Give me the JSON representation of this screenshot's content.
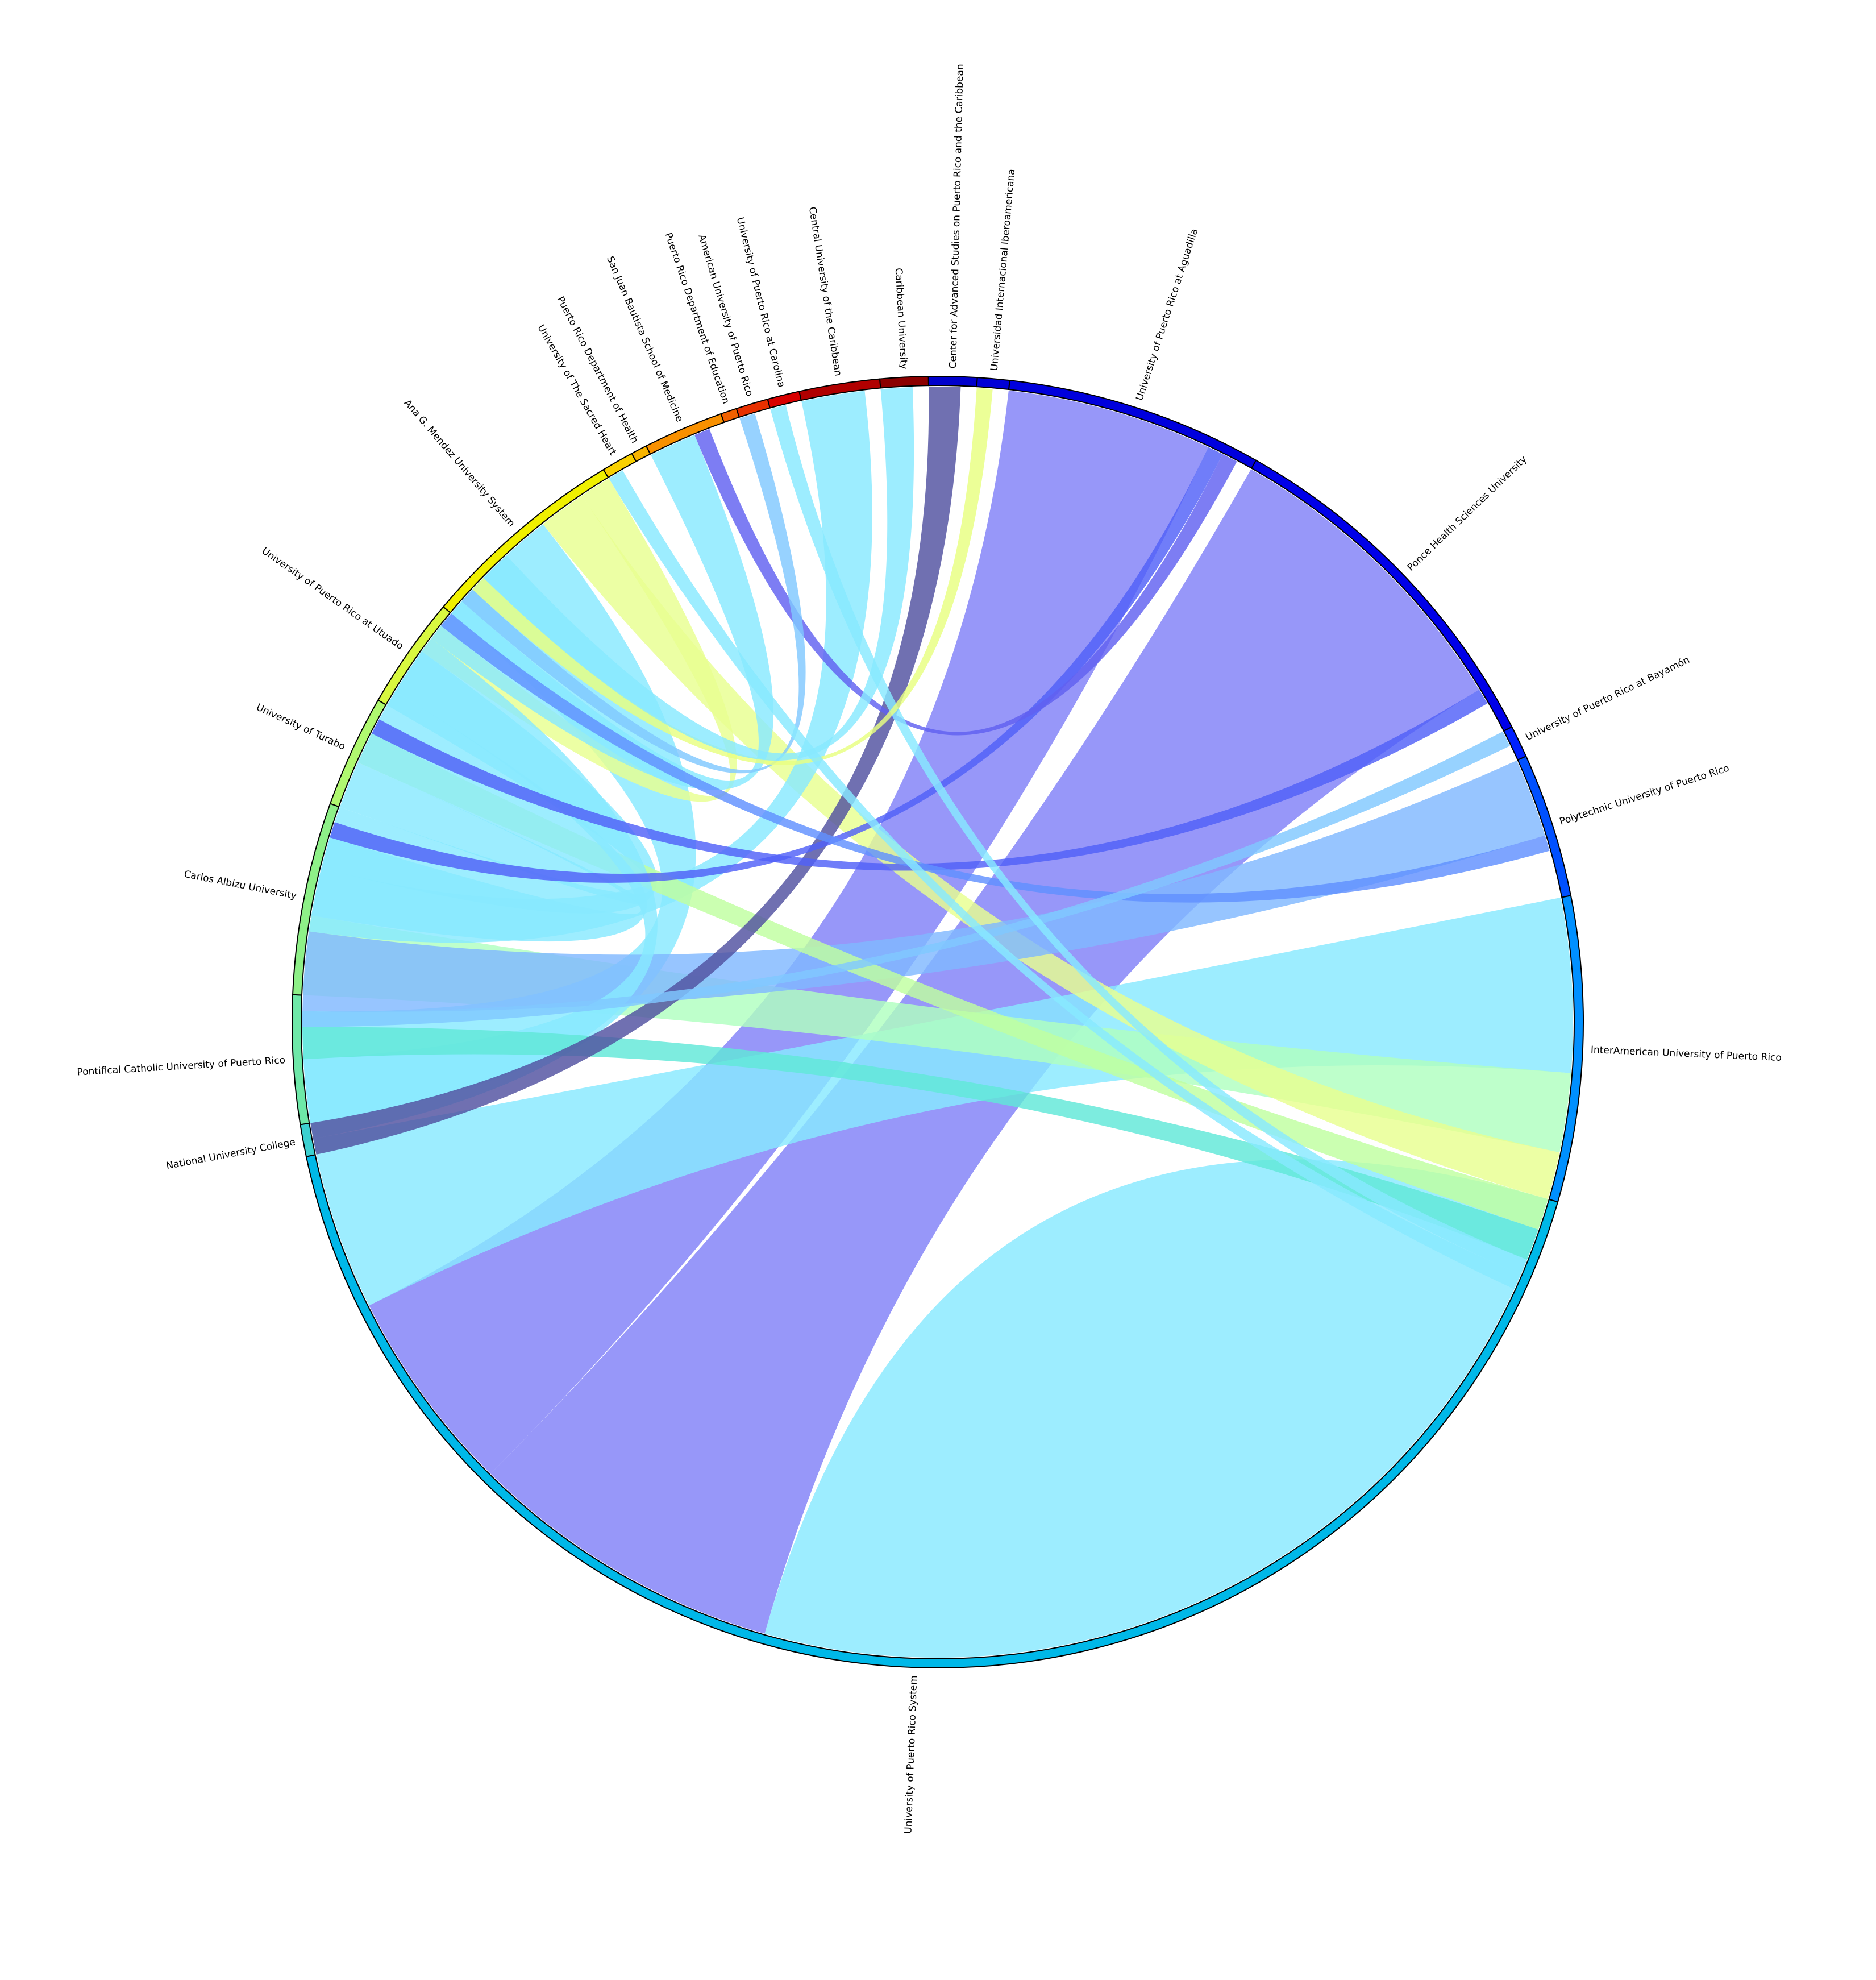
{
  "chart_data": {
    "type": "chord",
    "title": "",
    "segments": [
      {
        "name": "Caribbean University",
        "color": "#8b0000",
        "value": 6
      },
      {
        "name": "Center for Advanced Studies on Puerto Rico and the Caribbean",
        "color": "#0000cc",
        "value": 6
      },
      {
        "name": "Universidad Internacional Iberoamericana",
        "color": "#0000d6",
        "value": 4
      },
      {
        "name": "University of Puerto Rico at Aguadilla",
        "color": "#0000dd",
        "value": 32
      },
      {
        "name": "Ponce Health Sciences University",
        "color": "#0000e8",
        "value": 46
      },
      {
        "name": "University of Puerto Rico at Bayamón",
        "color": "#0020ff",
        "value": 4
      },
      {
        "name": "Polytechnic University of Puerto Rico",
        "color": "#0050ff",
        "value": 18
      },
      {
        "name": "InterAmerican University of Puerto Rico",
        "color": "#0090ff",
        "value": 38
      },
      {
        "name": "University of Puerto Rico System",
        "color": "#00b8e8",
        "value": 210
      },
      {
        "name": "National University College",
        "color": "#3cd0d0",
        "value": 4
      },
      {
        "name": "Pontifical Catholic University of Puerto Rico",
        "color": "#6ee8a8",
        "value": 16
      },
      {
        "name": "Carlos Albizu University",
        "color": "#8ef088",
        "value": 24
      },
      {
        "name": "University of Turabo",
        "color": "#b0f870",
        "value": 14
      },
      {
        "name": "University of Puerto Rico at Utuado",
        "color": "#d8f840",
        "value": 14
      },
      {
        "name": "Ana G. Mendez University System",
        "color": "#f0f000",
        "value": 26
      },
      {
        "name": "University of The Sacred Heart",
        "color": "#f8d000",
        "value": 4
      },
      {
        "name": "Puerto Rico Department of Health",
        "color": "#f8b400",
        "value": 2
      },
      {
        "name": "San Juan Bautista School of Medicine",
        "color": "#f89000",
        "value": 10
      },
      {
        "name": "Puerto Rico Department of Education",
        "color": "#f06000",
        "value": 2
      },
      {
        "name": "American University of Puerto Rico",
        "color": "#e83000",
        "value": 4
      },
      {
        "name": "University of Puerto Rico at Carolina",
        "color": "#d80000",
        "value": 4
      },
      {
        "name": "Central University of the Caribbean",
        "color": "#b00000",
        "value": 10
      }
    ],
    "links": [
      {
        "source": "University of Puerto Rico System",
        "target": "University of Puerto Rico System",
        "value": 62,
        "color": "#87e9ff"
      },
      {
        "source": "Ponce Health Sciences University",
        "target": "University of Puerto Rico System",
        "value": 40,
        "color": "#8080f8"
      },
      {
        "source": "University of Puerto Rico at Aguadilla",
        "target": "University of Puerto Rico System",
        "value": 26,
        "color": "#8080f8"
      },
      {
        "source": "InterAmerican University of Puerto Rico",
        "target": "University of Puerto Rico System",
        "value": 22,
        "color": "#87e9ff"
      },
      {
        "source": "Carlos Albizu University",
        "target": "InterAmerican University of Puerto Rico",
        "value": 10,
        "color": "#b0ffc0"
      },
      {
        "source": "Ana G. Mendez University System",
        "target": "University of Puerto Rico System",
        "value": 16,
        "color": "#87e9ff"
      },
      {
        "source": "Ana G. Mendez University System",
        "target": "InterAmerican University of Puerto Rico",
        "value": 6,
        "color": "#e8ff90"
      },
      {
        "source": "Polytechnic University of Puerto Rico",
        "target": "University of Puerto Rico System",
        "value": 10,
        "color": "#80b8ff"
      },
      {
        "source": "Central University of the Caribbean",
        "target": "University of Puerto Rico System",
        "value": 8,
        "color": "#87e9ff"
      },
      {
        "source": "University of Puerto Rico at Utuado",
        "target": "University of Puerto Rico System",
        "value": 8,
        "color": "#87e9ff"
      },
      {
        "source": "University of Puerto Rico at Utuado",
        "target": "Ana G. Mendez University System",
        "value": 4,
        "color": "#e8ff90"
      },
      {
        "source": "University of Turabo",
        "target": "University of Puerto Rico System",
        "value": 6,
        "color": "#87e9ff"
      },
      {
        "source": "University of Turabo",
        "target": "InterAmerican University of Puerto Rico",
        "value": 4,
        "color": "#c0ffa0"
      },
      {
        "source": "Carlos Albizu University",
        "target": "University of Puerto Rico System",
        "value": 10,
        "color": "#87e9ff"
      },
      {
        "source": "Pontifical Catholic University of Puerto Rico",
        "target": "University of Puerto Rico System",
        "value": 8,
        "color": "#87e9ff"
      },
      {
        "source": "Pontifical Catholic University of Puerto Rico",
        "target": "InterAmerican University of Puerto Rico",
        "value": 4,
        "color": "#60e8d8"
      },
      {
        "source": "San Juan Bautista School of Medicine",
        "target": "University of Puerto Rico System",
        "value": 6,
        "color": "#87e9ff"
      },
      {
        "source": "Center for Advanced Studies on Puerto Rico and the Caribbean",
        "target": "National University College",
        "value": 4,
        "color": "#5050a0"
      },
      {
        "source": "University of Puerto Rico at Aguadilla",
        "target": "Carlos Albizu University",
        "value": 2,
        "color": "#5060f8"
      },
      {
        "source": "Ponce Health Sciences University",
        "target": "University of Turabo",
        "value": 2,
        "color": "#5060f8"
      },
      {
        "source": "Polytechnic University of Puerto Rico",
        "target": "University of Puerto Rico at Utuado",
        "value": 2,
        "color": "#6090ff"
      },
      {
        "source": "University of Puerto Rico at Bayamón",
        "target": "Pontifical Catholic University of Puerto Rico",
        "value": 2,
        "color": "#80c8ff"
      },
      {
        "source": "San Juan Bautista School of Medicine",
        "target": "University of Puerto Rico at Aguadilla",
        "value": 2,
        "color": "#6060f0"
      },
      {
        "source": "American University of Puerto Rico",
        "target": "University of Puerto Rico System",
        "value": 2,
        "color": "#80c8ff"
      },
      {
        "source": "University of Puerto Rico at Carolina",
        "target": "InterAmerican University of Puerto Rico",
        "value": 2,
        "color": "#87e9ff"
      },
      {
        "source": "Universidad Internacional Iberoamericana",
        "target": "University of Puerto Rico System",
        "value": 2,
        "color": "#e8ff80"
      },
      {
        "source": "University of The Sacred Heart",
        "target": "InterAmerican University of Puerto Rico",
        "value": 2,
        "color": "#87e9ff"
      },
      {
        "source": "Caribbean University",
        "target": "University of Puerto Rico System",
        "value": 4,
        "color": "#87e9ff"
      }
    ]
  }
}
